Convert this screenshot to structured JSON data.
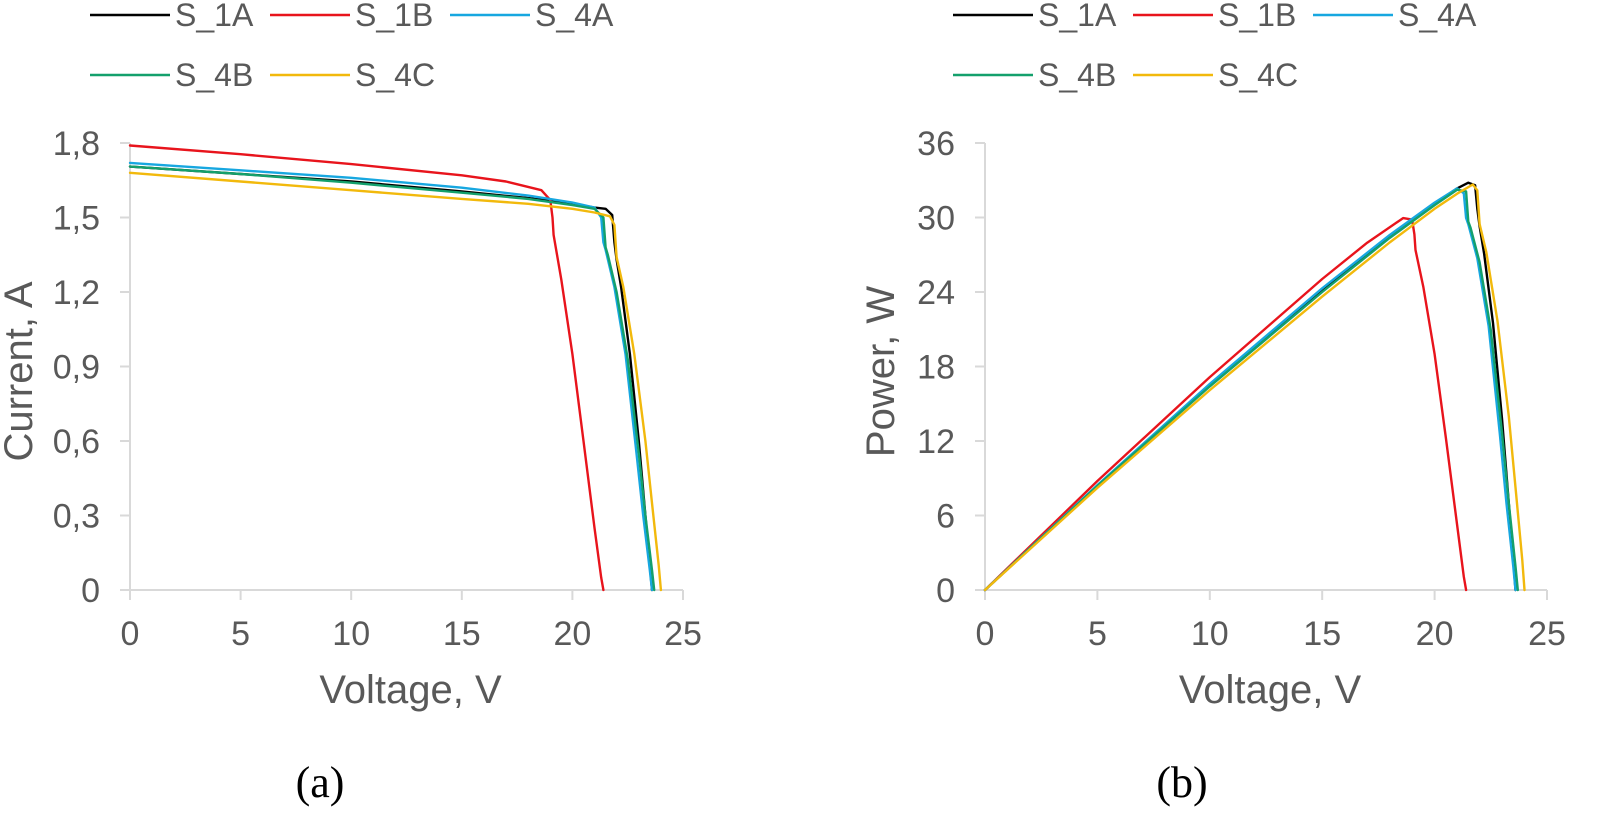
{
  "chart_data": [
    {
      "type": "line",
      "panel_label": "(a)",
      "xlabel": "Voltage,  V",
      "ylabel": "Current,  A",
      "xlim": [
        0,
        25
      ],
      "ylim": [
        0,
        1.8
      ],
      "xticks": [
        0,
        5,
        10,
        15,
        20,
        25
      ],
      "xtick_labels": [
        "0",
        "5",
        "10",
        "15",
        "20",
        "25"
      ],
      "yticks": [
        0,
        0.3,
        0.6,
        0.9,
        1.2,
        1.5,
        1.8
      ],
      "ytick_labels": [
        "0",
        "0,3",
        "0,6",
        "0,9",
        "1,2",
        "1,5",
        "1,8"
      ],
      "grid": false,
      "legend_position": "top",
      "series": [
        {
          "name": "S_1A",
          "color": "#000000",
          "x": [
            0,
            5,
            10,
            15,
            18,
            20,
            21,
            21.5,
            21.8,
            21.9,
            22.0,
            22.2,
            22.6,
            23.0,
            23.3,
            23.5,
            23.6
          ],
          "y": [
            1.705,
            1.675,
            1.645,
            1.605,
            1.578,
            1.555,
            1.54,
            1.535,
            1.51,
            1.4,
            1.33,
            1.22,
            0.95,
            0.6,
            0.3,
            0.1,
            0
          ]
        },
        {
          "name": "S_1B",
          "color": "#e8141c",
          "x": [
            0,
            5,
            10,
            15,
            17,
            18.6,
            19.0,
            19.1,
            19.15,
            19.5,
            20.0,
            20.5,
            21.0,
            21.3,
            21.4
          ],
          "y": [
            1.79,
            1.755,
            1.715,
            1.67,
            1.645,
            1.61,
            1.57,
            1.5,
            1.43,
            1.25,
            0.95,
            0.6,
            0.25,
            0.05,
            0
          ]
        },
        {
          "name": "S_4A",
          "color": "#17a7e0",
          "x": [
            0,
            5,
            10,
            15,
            18,
            20,
            21,
            21.3,
            21.4,
            21.5,
            21.9,
            22.4,
            22.9,
            23.2,
            23.5,
            23.6
          ],
          "y": [
            1.72,
            1.69,
            1.66,
            1.62,
            1.588,
            1.56,
            1.54,
            1.5,
            1.4,
            1.37,
            1.22,
            0.95,
            0.55,
            0.3,
            0.08,
            0
          ]
        },
        {
          "name": "S_4B",
          "color": "#14a06c",
          "x": [
            0,
            5,
            10,
            15,
            18,
            20,
            21,
            21.4,
            21.5,
            21.6,
            22.0,
            22.5,
            23.0,
            23.3,
            23.6,
            23.7
          ],
          "y": [
            1.705,
            1.675,
            1.64,
            1.6,
            1.575,
            1.55,
            1.535,
            1.5,
            1.38,
            1.35,
            1.2,
            0.93,
            0.55,
            0.3,
            0.08,
            0
          ]
        },
        {
          "name": "S_4C",
          "color": "#f2b90c",
          "x": [
            0,
            5,
            10,
            15,
            18,
            20,
            21,
            21.7,
            21.9,
            22.0,
            22.3,
            22.8,
            23.3,
            23.6,
            23.9,
            24.0
          ],
          "y": [
            1.68,
            1.645,
            1.61,
            1.575,
            1.555,
            1.535,
            1.52,
            1.505,
            1.47,
            1.34,
            1.22,
            0.95,
            0.6,
            0.35,
            0.1,
            0
          ]
        }
      ]
    },
    {
      "type": "line",
      "panel_label": "(b)",
      "xlabel": "Voltage,  V",
      "ylabel": "Power,  W",
      "xlim": [
        0,
        25
      ],
      "ylim": [
        0,
        36
      ],
      "xticks": [
        0,
        5,
        10,
        15,
        20,
        25
      ],
      "xtick_labels": [
        "0",
        "5",
        "10",
        "15",
        "20",
        "25"
      ],
      "yticks": [
        0,
        6,
        12,
        18,
        24,
        30,
        36
      ],
      "ytick_labels": [
        "0",
        "6",
        "12",
        "18",
        "24",
        "30",
        "36"
      ],
      "grid": false,
      "legend_position": "top",
      "series": [
        {
          "name": "S_1A",
          "color": "#000000",
          "x": [
            0,
            5,
            10,
            15,
            18,
            20,
            21,
            21.5,
            21.8,
            21.9,
            22.0,
            22.2,
            22.6,
            23.0,
            23.3,
            23.5,
            23.6
          ],
          "y": [
            0,
            8.38,
            16.45,
            24.08,
            28.4,
            31.1,
            32.34,
            32.8,
            32.6,
            30.7,
            29.3,
            27.1,
            21.5,
            13.8,
            7.0,
            2.4,
            0
          ]
        },
        {
          "name": "S_1B",
          "color": "#e8141c",
          "x": [
            0,
            5,
            10,
            15,
            17,
            18.6,
            19.0,
            19.1,
            19.15,
            19.5,
            20.0,
            20.5,
            21.0,
            21.3,
            21.4
          ],
          "y": [
            0,
            8.78,
            17.15,
            25.05,
            27.97,
            29.95,
            29.83,
            28.65,
            27.38,
            24.38,
            19.0,
            12.3,
            5.25,
            1.07,
            0
          ]
        },
        {
          "name": "S_4A",
          "color": "#17a7e0",
          "x": [
            0,
            5,
            10,
            15,
            18,
            20,
            21,
            21.3,
            21.4,
            21.5,
            21.9,
            22.4,
            22.9,
            23.2,
            23.5,
            23.6
          ],
          "y": [
            0,
            8.45,
            16.6,
            24.3,
            28.58,
            31.2,
            32.34,
            31.95,
            29.96,
            29.46,
            26.72,
            21.28,
            12.6,
            6.96,
            1.88,
            0
          ]
        },
        {
          "name": "S_4B",
          "color": "#14a06c",
          "x": [
            0,
            5,
            10,
            15,
            18,
            20,
            21,
            21.4,
            21.5,
            21.6,
            22.0,
            22.5,
            23.0,
            23.3,
            23.6,
            23.7
          ],
          "y": [
            0,
            8.38,
            16.4,
            24.0,
            28.35,
            31.0,
            32.24,
            32.1,
            29.67,
            29.16,
            26.4,
            20.93,
            12.65,
            6.99,
            1.89,
            0
          ]
        },
        {
          "name": "S_4C",
          "color": "#f2b90c",
          "x": [
            0,
            5,
            10,
            15,
            18,
            20,
            21,
            21.7,
            21.9,
            22.0,
            22.3,
            22.8,
            23.3,
            23.6,
            23.9,
            24.0
          ],
          "y": [
            0,
            8.23,
            16.1,
            23.63,
            27.99,
            30.7,
            31.92,
            32.66,
            32.19,
            29.48,
            27.21,
            21.66,
            13.98,
            8.26,
            2.39,
            0
          ]
        }
      ]
    }
  ]
}
